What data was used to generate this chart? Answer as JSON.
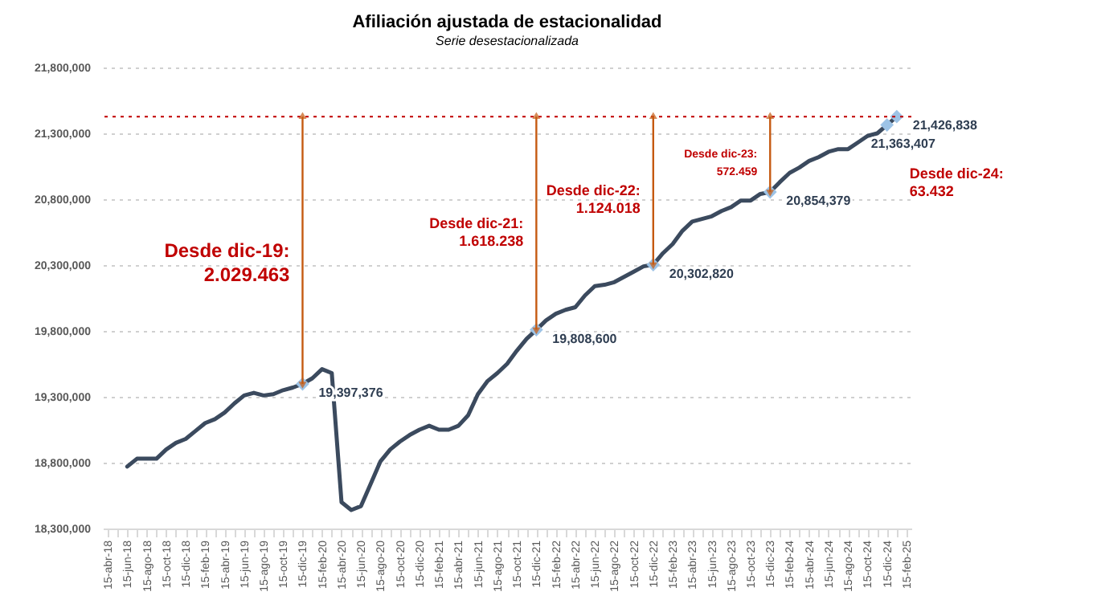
{
  "chart_data": {
    "type": "line",
    "title": "Afiliación ajustada de estacionalidad",
    "subtitle": "Serie desestacionalizada",
    "categories": [
      "15-abr-18",
      null,
      "15-jun-18",
      null,
      "15-ago-18",
      null,
      "15-oct-18",
      null,
      "15-dic-18",
      null,
      "15-feb-19",
      null,
      "15-abr-19",
      null,
      "15-jun-19",
      null,
      "15-ago-19",
      null,
      "15-oct-19",
      null,
      "15-dic-19",
      null,
      "15-feb-20",
      null,
      "15-abr-20",
      null,
      "15-jun-20",
      null,
      "15-ago-20",
      null,
      "15-oct-20",
      null,
      "15-dic-20",
      null,
      "15-feb-21",
      null,
      "15-abr-21",
      null,
      "15-jun-21",
      null,
      "15-ago-21",
      null,
      "15-oct-21",
      null,
      "15-dic-21",
      null,
      "15-feb-22",
      null,
      "15-abr-22",
      null,
      "15-jun-22",
      null,
      "15-ago-22",
      null,
      "15-oct-22",
      null,
      "15-dic-22",
      null,
      "15-feb-23",
      null,
      "15-abr-23",
      null,
      "15-jun-23",
      null,
      "15-ago-23",
      null,
      "15-oct-23",
      null,
      "15-dic-23",
      null,
      "15-feb-24",
      null,
      "15-abr-24",
      null,
      "15-jun-24",
      null,
      "15-ago-24",
      null,
      "15-oct-24",
      null,
      "15-dic-24",
      null,
      "15-feb-25"
    ],
    "series": [
      {
        "type": "line",
        "color": "#3b4a5e",
        "values": [
          null,
          null,
          18770000,
          18830000,
          18830000,
          18830000,
          18900000,
          18950000,
          18980000,
          19040000,
          19100000,
          19130000,
          19180000,
          19250000,
          19310000,
          19330000,
          19310000,
          19320000,
          19350000,
          19370000,
          19397376,
          19440000,
          19510000,
          19480000,
          18500000,
          18440000,
          18470000,
          18640000,
          18810000,
          18900000,
          18960000,
          19010000,
          19050000,
          19080000,
          19050000,
          19050000,
          19080000,
          19160000,
          19320000,
          19420000,
          19480000,
          19550000,
          19650000,
          19740000,
          19808600,
          19880000,
          19930000,
          19960000,
          19980000,
          20070000,
          20140000,
          20150000,
          20170000,
          20210000,
          20250000,
          20290000,
          20302820,
          20390000,
          20460000,
          20560000,
          20630000,
          20650000,
          20670000,
          20710000,
          20740000,
          20790000,
          20790000,
          20840000,
          20854379,
          20930000,
          21000000,
          21040000,
          21090000,
          21120000,
          21160000,
          21180000,
          21180000,
          21230000,
          21280000,
          21300000,
          21363407,
          21426838,
          null
        ]
      },
      {
        "type": "scatter",
        "color": "#9dc3e6",
        "marker": "diamond",
        "values": [
          null,
          null,
          null,
          null,
          null,
          null,
          null,
          null,
          null,
          null,
          null,
          null,
          null,
          null,
          null,
          null,
          null,
          null,
          null,
          null,
          19397376,
          null,
          null,
          null,
          null,
          null,
          null,
          null,
          null,
          null,
          null,
          null,
          null,
          null,
          null,
          null,
          null,
          null,
          null,
          null,
          null,
          null,
          null,
          null,
          19808600,
          null,
          null,
          null,
          null,
          null,
          null,
          null,
          null,
          null,
          null,
          null,
          20302820,
          null,
          null,
          null,
          null,
          null,
          null,
          null,
          null,
          null,
          null,
          null,
          20854379,
          null,
          null,
          null,
          null,
          null,
          null,
          null,
          null,
          null,
          null,
          null,
          21363407,
          21426838,
          null
        ],
        "value_labels": [
          null,
          null,
          null,
          null,
          null,
          null,
          null,
          null,
          null,
          null,
          null,
          null,
          null,
          null,
          null,
          null,
          null,
          null,
          null,
          null,
          "19,397,376",
          null,
          null,
          null,
          null,
          null,
          null,
          null,
          null,
          null,
          null,
          null,
          null,
          null,
          null,
          null,
          null,
          null,
          null,
          null,
          null,
          null,
          null,
          null,
          "19,808,600",
          null,
          null,
          null,
          null,
          null,
          null,
          null,
          null,
          null,
          null,
          null,
          "20,302,820",
          null,
          null,
          null,
          null,
          null,
          null,
          null,
          null,
          null,
          null,
          null,
          "20,854,379",
          null,
          null,
          null,
          null,
          null,
          null,
          null,
          null,
          null,
          null,
          null,
          "21,363,407",
          "21,426,838",
          null
        ]
      }
    ],
    "ylim": [
      18300000,
      21800000
    ],
    "yticks": [
      {
        "value": 18300000,
        "label": "18,300,000"
      },
      {
        "value": 18800000,
        "label": "18,800,000"
      },
      {
        "value": 19300000,
        "label": "19,300,000"
      },
      {
        "value": 19800000,
        "label": "19,800,000"
      },
      {
        "value": 20300000,
        "label": "20,300,000"
      },
      {
        "value": 20800000,
        "label": "20,800,000"
      },
      {
        "value": 21300000,
        "label": "21,300,000"
      },
      {
        "value": 21800000,
        "label": "21,800,000"
      }
    ],
    "grid": "y",
    "ref_lines": [
      {
        "axis": "y",
        "value": 21426838,
        "color": "#c00000",
        "line_style": "dotted"
      }
    ],
    "annotations": [
      "Desde dic-19:\n2.029.463",
      "Desde dic-21:\n1.618.238",
      "Desde dic-22:\n1.124.018",
      "Desde dic-23:\n572.459",
      "Desde dic-24:\n63.432"
    ]
  }
}
